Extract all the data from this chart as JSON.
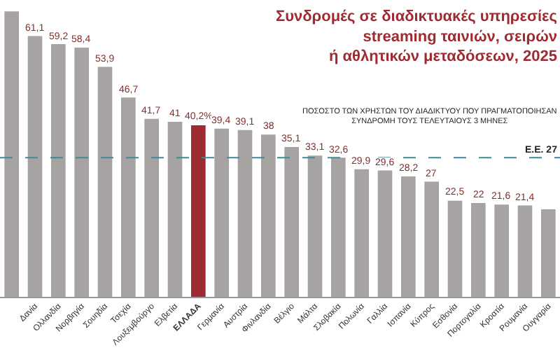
{
  "chart_data": {
    "type": "bar",
    "title": "Συνδρομές σε διαδικτυακές υπηρεσίες streaming ταινιών, σειρών ή αθλητικών μεταδόσεων, 2025",
    "subtitle": "ΠΟΣΟΣΤΟ ΤΩΝ ΧΡΗΣΤΩΝ ΤΟΥ ΔΙΑΔΙΚΤΥΟΥ ΠΟΥ ΠΡΑΓΜΑΤΟΠΟΙΗΣΑΝ ΣΥΝΔΡΟΜΗ ΤΟΥΣ ΤΕΛΕΥΤΑΙΟΥΣ 3 ΜΗΝΕΣ",
    "categories": [
      null,
      "Δανία",
      "Ολλανδία",
      "Νορβηγία",
      "Σουηδία",
      "Τσεχία",
      "Λουξεμβούργο",
      "Ελβετία",
      "ΕΛΛΑΔΑ",
      "Γερμανία",
      "Αυστρία",
      "Φινλανδία",
      "Βέλγιο",
      "Μάλτα",
      "Σλοβακία",
      "Πολωνία",
      "Γαλλία",
      "Ισπανία",
      "Κύπρος",
      "Εσθονία",
      "Πορτογαλία",
      "Κροατία",
      "Ρουμανία",
      "Ουγγαρία"
    ],
    "values": [
      66.9,
      61.1,
      59.2,
      58.4,
      53.9,
      46.7,
      41.7,
      41,
      40.2,
      39.4,
      39.1,
      38,
      35.1,
      33.1,
      32.6,
      29.9,
      29.6,
      28.2,
      27,
      22.5,
      22,
      21.6,
      21.4,
      20.5
    ],
    "value_labels": [
      null,
      "61,1",
      "59,2",
      "58,4",
      "53,9",
      "46,7",
      "41,7",
      "41",
      "40,2%",
      "39,4",
      "39,1",
      "38",
      "35,1",
      "33,1",
      "32,6",
      "29,9",
      "29,6",
      "28,2",
      "27",
      "22,5",
      "22",
      "21,6",
      "21,4",
      null
    ],
    "colors": [
      "#a7a3a2",
      "#a7a3a2",
      "#a7a3a2",
      "#a7a3a2",
      "#a7a3a2",
      "#a7a3a2",
      "#a7a3a2",
      "#a7a3a2",
      "#9e2b31",
      "#a7a3a2",
      "#a7a3a2",
      "#a7a3a2",
      "#a7a3a2",
      "#a7a3a2",
      "#a7a3a2",
      "#a7a3a2",
      "#a7a3a2",
      "#a7a3a2",
      "#a7a3a2",
      "#a7a3a2",
      "#a7a3a2",
      "#a7a3a2",
      "#a7a3a2",
      "#a7a3a2"
    ],
    "ref_lines": [
      {
        "axis": "y",
        "value": 32.6,
        "label": "Ε.Ε. 27",
        "color": "#3f8b9c",
        "line_style": "dashed"
      }
    ],
    "legend": false
  }
}
